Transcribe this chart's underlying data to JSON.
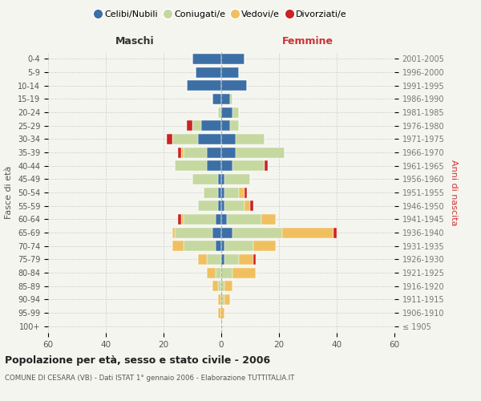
{
  "age_groups": [
    "100+",
    "95-99",
    "90-94",
    "85-89",
    "80-84",
    "75-79",
    "70-74",
    "65-69",
    "60-64",
    "55-59",
    "50-54",
    "45-49",
    "40-44",
    "35-39",
    "30-34",
    "25-29",
    "20-24",
    "15-19",
    "10-14",
    "5-9",
    "0-4"
  ],
  "birth_years": [
    "≤ 1905",
    "1906-1910",
    "1911-1915",
    "1916-1920",
    "1921-1925",
    "1926-1930",
    "1931-1935",
    "1936-1940",
    "1941-1945",
    "1946-1950",
    "1951-1955",
    "1956-1960",
    "1961-1965",
    "1966-1970",
    "1971-1975",
    "1976-1980",
    "1981-1985",
    "1986-1990",
    "1991-1995",
    "1996-2000",
    "2001-2005"
  ],
  "maschi": {
    "celibi": [
      0,
      0,
      0,
      0,
      0,
      0,
      2,
      3,
      2,
      1,
      1,
      1,
      5,
      5,
      8,
      7,
      0,
      3,
      12,
      9,
      10
    ],
    "coniugati": [
      0,
      0,
      0,
      1,
      2,
      5,
      11,
      13,
      11,
      7,
      5,
      9,
      11,
      8,
      9,
      3,
      1,
      0,
      0,
      0,
      0
    ],
    "vedovi": [
      0,
      1,
      1,
      2,
      3,
      3,
      4,
      1,
      1,
      0,
      0,
      0,
      0,
      1,
      0,
      0,
      0,
      0,
      0,
      0,
      0
    ],
    "divorziati": [
      0,
      0,
      0,
      0,
      0,
      0,
      0,
      0,
      1,
      0,
      0,
      0,
      0,
      1,
      2,
      2,
      0,
      0,
      0,
      0,
      0
    ]
  },
  "femmine": {
    "nubili": [
      0,
      0,
      0,
      0,
      0,
      1,
      1,
      4,
      2,
      1,
      1,
      1,
      4,
      5,
      5,
      3,
      4,
      3,
      9,
      6,
      8
    ],
    "coniugate": [
      0,
      0,
      1,
      1,
      4,
      5,
      10,
      17,
      12,
      7,
      5,
      9,
      11,
      17,
      10,
      3,
      2,
      1,
      0,
      0,
      0
    ],
    "vedove": [
      0,
      1,
      2,
      3,
      8,
      5,
      8,
      18,
      5,
      2,
      2,
      0,
      0,
      0,
      0,
      0,
      0,
      0,
      0,
      0,
      0
    ],
    "divorziate": [
      0,
      0,
      0,
      0,
      0,
      1,
      0,
      1,
      0,
      1,
      1,
      0,
      1,
      0,
      0,
      0,
      0,
      0,
      0,
      0,
      0
    ]
  },
  "colors": {
    "celibi": "#3c6fa5",
    "coniugati": "#c5d8a0",
    "vedovi": "#f0c060",
    "divorziati": "#cc2222"
  },
  "xlim": 60,
  "title": "Popolazione per età, sesso e stato civile - 2006",
  "subtitle": "COMUNE DI CESARA (VB) - Dati ISTAT 1° gennaio 2006 - Elaborazione TUTTITALIA.IT",
  "ylabel_left": "Fasce di età",
  "ylabel_right": "Anni di nascita",
  "legend_labels": [
    "Celibi/Nubili",
    "Coniugati/e",
    "Vedovi/e",
    "Divorziati/e"
  ],
  "bg_color": "#f5f5f0"
}
